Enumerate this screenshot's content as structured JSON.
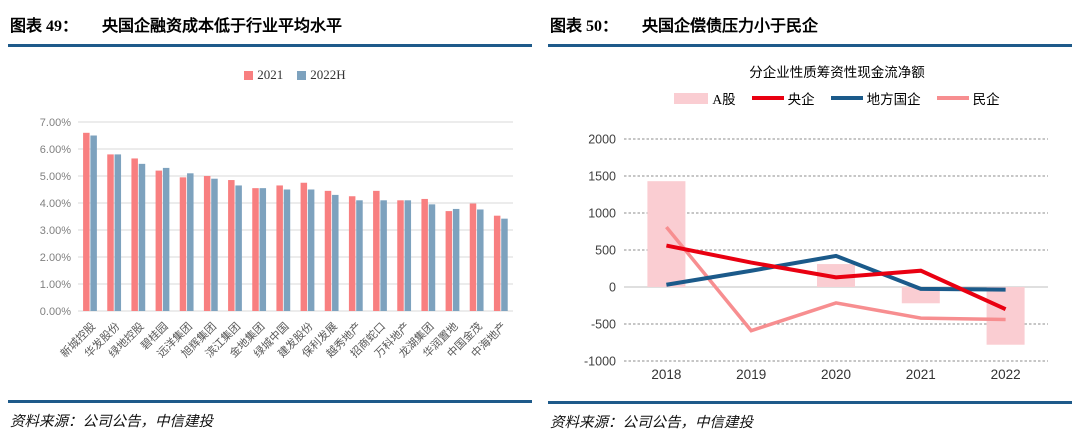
{
  "header": {
    "left": {
      "tag": "图表 49：",
      "title": "央国企融资成本低于行业平均水平"
    },
    "right": {
      "tag": "图表 50：",
      "title": "央国企偿债压力小于民企"
    }
  },
  "footer": {
    "left": "资料来源：公司公告，中信建投",
    "right": "资料来源：公司公告，中信建投"
  },
  "colors": {
    "rule": "#1E5A8A",
    "grid_left": "#D9D9D9",
    "grid_right": "#8C8C8C",
    "zero_line_right": "#BFBFBF",
    "axis_text_left": "#808080",
    "axis_text_right": "#404040",
    "category_text_left": "#595959"
  },
  "chart_data": [
    {
      "id": "financing-cost",
      "type": "bar",
      "title": "",
      "legend_position": "top",
      "grid": true,
      "ylim": [
        0,
        7
      ],
      "ytick_step": 1,
      "ytick_format": "percent",
      "categories": [
        "新城控股",
        "华发股份",
        "绿地控股",
        "碧桂园",
        "远洋集团",
        "旭辉集团",
        "滨江集团",
        "金地集团",
        "绿城中国",
        "建发股份",
        "保利发展",
        "越秀地产",
        "招商蛇口",
        "万科地产",
        "龙湖集团",
        "华润置地",
        "中国金茂",
        "中海地产"
      ],
      "series": [
        {
          "name": "2021",
          "color": "#F87F80",
          "values": [
            6.6,
            5.8,
            5.65,
            5.2,
            4.95,
            5.0,
            4.85,
            4.55,
            4.65,
            4.75,
            4.45,
            4.25,
            4.45,
            4.1,
            4.15,
            3.7,
            3.98,
            3.53
          ]
        },
        {
          "name": "2022H",
          "color": "#7DA2BE",
          "values": [
            6.5,
            5.8,
            5.45,
            5.3,
            5.1,
            4.9,
            4.65,
            4.55,
            4.5,
            4.5,
            4.3,
            4.1,
            4.1,
            4.1,
            3.95,
            3.78,
            3.76,
            3.42
          ]
        }
      ]
    },
    {
      "id": "cash-flow-by-ownership",
      "type": "bar+line",
      "title": "分企业性质筹资性现金流净额",
      "legend_position": "top",
      "grid": true,
      "ylim": [
        -1000,
        2000
      ],
      "ytick_step": 500,
      "categories": [
        "2018",
        "2019",
        "2020",
        "2021",
        "2022"
      ],
      "bar_series": {
        "name": "A股",
        "color": "#FACDD2",
        "values": [
          1430,
          0,
          310,
          -220,
          -780
        ]
      },
      "line_series": [
        {
          "name": "央企",
          "color": "#E90011",
          "width": 4,
          "values": [
            560,
            330,
            130,
            220,
            -300
          ]
        },
        {
          "name": "地方国企",
          "color": "#1B5A8A",
          "width": 4,
          "values": [
            30,
            220,
            420,
            -25,
            -35
          ]
        },
        {
          "name": "民企",
          "color": "#F78E90",
          "width": 3.5,
          "values": [
            810,
            -590,
            -215,
            -420,
            -440
          ]
        }
      ]
    }
  ]
}
